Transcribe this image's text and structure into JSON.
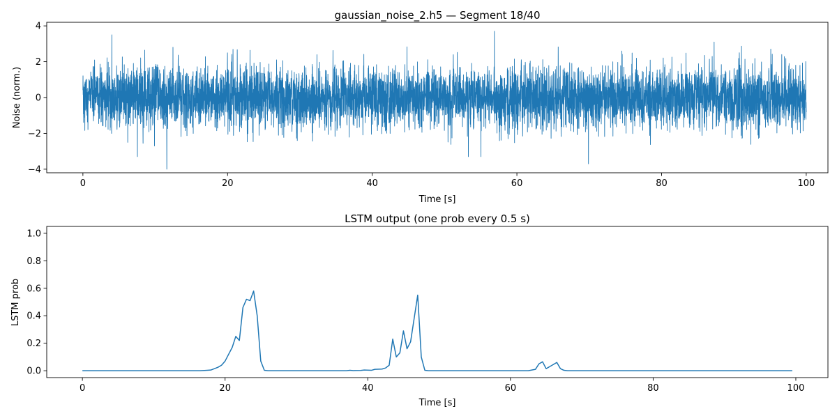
{
  "chart_data": [
    {
      "type": "line",
      "title": "gaussian_noise_2.h5 — Segment 18/40",
      "xlabel": "Time [s]",
      "ylabel": "Noise (norm.)",
      "xlim": [
        -5,
        103
      ],
      "ylim": [
        -4.2,
        4.2
      ],
      "xticks": [
        0,
        20,
        40,
        60,
        80,
        100
      ],
      "xtick_labels": [
        "0",
        "20",
        "40",
        "60",
        "80",
        "100"
      ],
      "yticks": [
        -4,
        -2,
        0,
        2,
        4
      ],
      "ytick_labels": [
        "−4",
        "−2",
        "0",
        "2",
        "4"
      ],
      "grid": false,
      "color": "#1f77b4",
      "signal": {
        "distribution": "gaussian",
        "mean": 0.0,
        "std": 0.85,
        "t_start": 0,
        "t_end": 100,
        "extremes": [
          {
            "x": 11.6,
            "y": -4.0
          },
          {
            "x": 56.9,
            "y": 3.7
          },
          {
            "x": 4.0,
            "y": 3.5
          },
          {
            "x": 69.9,
            "y": -3.7
          }
        ]
      }
    },
    {
      "type": "line",
      "title": "LSTM output (one prob every 0.5 s)",
      "xlabel": "Time [s]",
      "ylabel": "LSTM prob",
      "xlim": [
        -5,
        104.5
      ],
      "ylim": [
        -0.05,
        1.05
      ],
      "xticks": [
        0,
        20,
        40,
        60,
        80,
        100
      ],
      "xtick_labels": [
        "0",
        "20",
        "40",
        "60",
        "80",
        "100"
      ],
      "yticks": [
        0.0,
        0.2,
        0.4,
        0.6,
        0.8,
        1.0
      ],
      "ytick_labels": [
        "0.0",
        "0.2",
        "0.4",
        "0.6",
        "0.8",
        "1.0"
      ],
      "grid": false,
      "color": "#1f77b4",
      "points": [
        [
          0,
          0
        ],
        [
          16.5,
          0
        ],
        [
          17.5,
          0.003
        ],
        [
          18.0,
          0.005
        ],
        [
          18.5,
          0.015
        ],
        [
          19.0,
          0.025
        ],
        [
          19.5,
          0.04
        ],
        [
          20.0,
          0.07
        ],
        [
          20.5,
          0.12
        ],
        [
          21.0,
          0.17
        ],
        [
          21.5,
          0.25
        ],
        [
          22.0,
          0.22
        ],
        [
          22.5,
          0.46
        ],
        [
          23.0,
          0.52
        ],
        [
          23.5,
          0.51
        ],
        [
          24.0,
          0.58
        ],
        [
          24.5,
          0.4
        ],
        [
          25.0,
          0.07
        ],
        [
          25.5,
          0.003
        ],
        [
          26.0,
          0
        ],
        [
          37.0,
          0
        ],
        [
          37.5,
          0.003
        ],
        [
          38.0,
          0.001
        ],
        [
          39.0,
          0.002
        ],
        [
          39.5,
          0.005
        ],
        [
          40.5,
          0.003
        ],
        [
          41.0,
          0.01
        ],
        [
          42.0,
          0.012
        ],
        [
          42.5,
          0.02
        ],
        [
          43.0,
          0.04
        ],
        [
          43.5,
          0.23
        ],
        [
          44.0,
          0.1
        ],
        [
          44.5,
          0.13
        ],
        [
          45.0,
          0.29
        ],
        [
          45.5,
          0.16
        ],
        [
          46.0,
          0.21
        ],
        [
          46.5,
          0.38
        ],
        [
          47.0,
          0.55
        ],
        [
          47.5,
          0.1
        ],
        [
          48.0,
          0.003
        ],
        [
          48.5,
          0
        ],
        [
          62.5,
          0
        ],
        [
          63.0,
          0.005
        ],
        [
          63.5,
          0.01
        ],
        [
          64.0,
          0.05
        ],
        [
          64.5,
          0.065
        ],
        [
          65.0,
          0.015
        ],
        [
          65.5,
          0.03
        ],
        [
          66.0,
          0.045
        ],
        [
          66.5,
          0.06
        ],
        [
          67.0,
          0.015
        ],
        [
          67.5,
          0.003
        ],
        [
          68.0,
          0
        ],
        [
          99.5,
          0
        ]
      ]
    }
  ]
}
